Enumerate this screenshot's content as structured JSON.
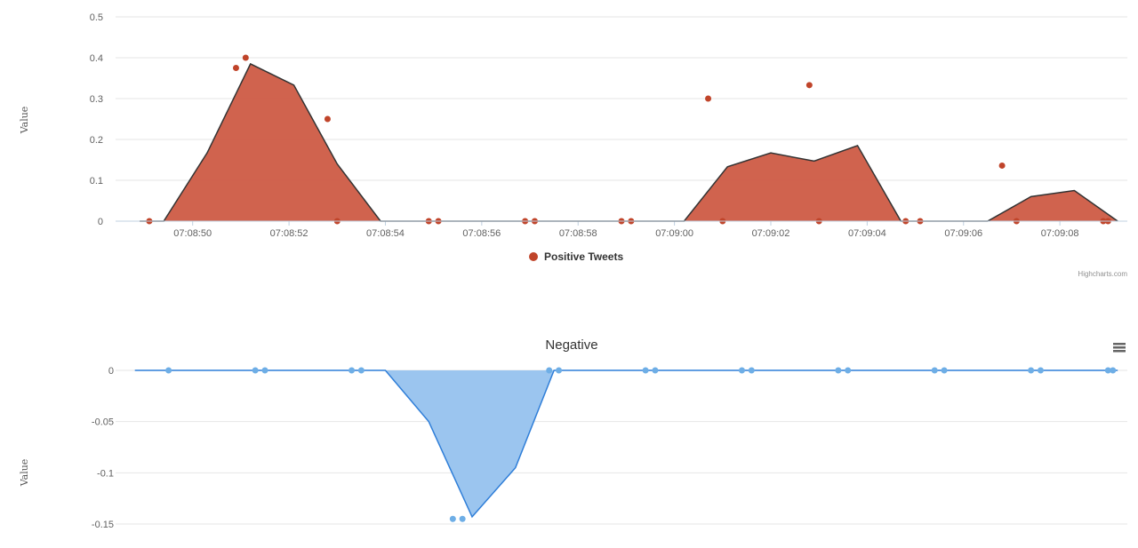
{
  "chart_data": [
    {
      "type": "area",
      "title": "",
      "ylabel": "Value",
      "ylim": [
        0,
        0.5
      ],
      "y_ticks": [
        "0",
        "0.1",
        "0.2",
        "0.3",
        "0.4",
        "0.5"
      ],
      "x_ticks": [
        "07:08:50",
        "07:08:52",
        "07:08:54",
        "07:08:56",
        "07:08:58",
        "07:09:00",
        "07:09:02",
        "07:09:04",
        "07:09:06",
        "07:09:08"
      ],
      "x_tick_seconds": [
        50,
        52,
        54,
        56,
        58,
        60,
        62,
        64,
        66,
        68
      ],
      "x_range_seconds": [
        48.4,
        69.4
      ],
      "color": "#c0442a",
      "area_color": "#cd5b45",
      "line_color": "#333333",
      "legend_position": "bottom-center",
      "credits": "Highcharts.com",
      "series": [
        {
          "name": "Positive Tweets",
          "line": [
            [
              48.9,
              0
            ],
            [
              49.4,
              0
            ],
            [
              50.3,
              0.167
            ],
            [
              51.2,
              0.385
            ],
            [
              52.1,
              0.333
            ],
            [
              53.0,
              0.14
            ],
            [
              53.9,
              0
            ],
            [
              54.8,
              0
            ],
            [
              55.7,
              0
            ],
            [
              56.6,
              0
            ],
            [
              57.5,
              0
            ],
            [
              58.4,
              0
            ],
            [
              59.3,
              0
            ],
            [
              60.2,
              0
            ],
            [
              61.1,
              0.133
            ],
            [
              62.0,
              0.167
            ],
            [
              62.9,
              0.147
            ],
            [
              63.8,
              0.185
            ],
            [
              64.7,
              0
            ],
            [
              65.6,
              0
            ],
            [
              66.5,
              0
            ],
            [
              67.4,
              0.06
            ],
            [
              68.3,
              0.075
            ],
            [
              69.2,
              0
            ]
          ],
          "points": [
            [
              49.1,
              0
            ],
            [
              50.9,
              0.375
            ],
            [
              51.1,
              0.4
            ],
            [
              52.8,
              0.25
            ],
            [
              53.0,
              0
            ],
            [
              54.9,
              0
            ],
            [
              55.1,
              0
            ],
            [
              56.9,
              0
            ],
            [
              57.1,
              0
            ],
            [
              58.9,
              0
            ],
            [
              59.1,
              0
            ],
            [
              60.7,
              0.3
            ],
            [
              61.0,
              0
            ],
            [
              62.8,
              0.333
            ],
            [
              63.0,
              0
            ],
            [
              64.8,
              0
            ],
            [
              65.1,
              0
            ],
            [
              66.8,
              0.136
            ],
            [
              67.1,
              0
            ],
            [
              68.9,
              0
            ],
            [
              69.0,
              0
            ]
          ]
        }
      ]
    },
    {
      "type": "area",
      "title": "Negative",
      "ylabel": "Value",
      "ylim": [
        -0.15,
        0
      ],
      "y_ticks": [
        "0",
        "-0.05",
        "-0.1",
        "-0.15"
      ],
      "x_range_seconds": [
        48.4,
        69.4
      ],
      "color": "#6eaee6",
      "area_color": "#9bc5ef",
      "line_color": "#2f7ed8",
      "menu_icon": "hamburger-menu-icon",
      "series": [
        {
          "name": "",
          "line": [
            [
              48.8,
              0
            ],
            [
              49.6,
              0
            ],
            [
              50.5,
              0
            ],
            [
              51.4,
              0
            ],
            [
              52.3,
              0
            ],
            [
              53.1,
              0
            ],
            [
              54.0,
              0
            ],
            [
              54.9,
              -0.05
            ],
            [
              55.8,
              -0.143
            ],
            [
              56.7,
              -0.095
            ],
            [
              57.5,
              0
            ],
            [
              58.4,
              0
            ],
            [
              59.3,
              0
            ],
            [
              60.2,
              0
            ],
            [
              61.1,
              0
            ],
            [
              62.0,
              0
            ],
            [
              62.9,
              0
            ],
            [
              63.8,
              0
            ],
            [
              64.7,
              0
            ],
            [
              65.6,
              0
            ],
            [
              66.5,
              0
            ],
            [
              67.4,
              0
            ],
            [
              68.3,
              0
            ],
            [
              69.2,
              0
            ]
          ],
          "points": [
            [
              49.5,
              0
            ],
            [
              51.3,
              0
            ],
            [
              51.5,
              0
            ],
            [
              53.3,
              0
            ],
            [
              53.5,
              0
            ],
            [
              55.4,
              -0.145
            ],
            [
              55.6,
              -0.145
            ],
            [
              57.4,
              0
            ],
            [
              57.6,
              0
            ],
            [
              59.4,
              0
            ],
            [
              59.6,
              0
            ],
            [
              61.4,
              0
            ],
            [
              61.6,
              0
            ],
            [
              63.4,
              0
            ],
            [
              63.6,
              0
            ],
            [
              65.4,
              0
            ],
            [
              65.6,
              0
            ],
            [
              67.4,
              0
            ],
            [
              67.6,
              0
            ],
            [
              69.0,
              0
            ],
            [
              69.1,
              0
            ]
          ]
        }
      ]
    }
  ]
}
